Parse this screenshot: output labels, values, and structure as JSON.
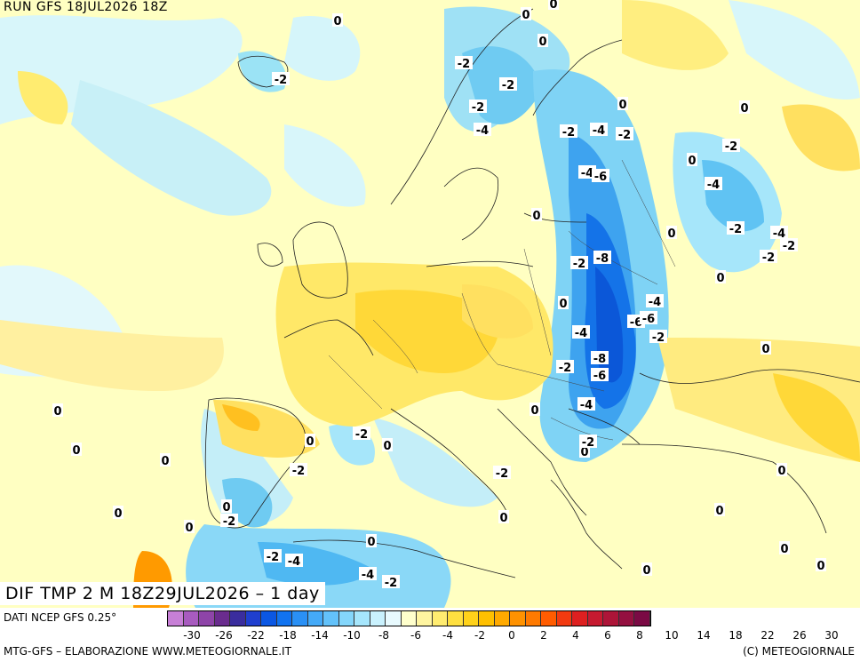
{
  "map": {
    "run_title": "RUN GFS 18JUL2026 18Z",
    "main_title": "DIF TMP 2 M 18Z29JUL2026 – 1 day",
    "data_source": "DATI NCEP GFS 0.25°",
    "credit_left": "MTG-GFS – ELABORAZIONE WWW.METEOGIORNALE.IT",
    "credit_right": "(C) METEOGIORNALE"
  },
  "legend": {
    "colors": [
      "#c77fd6",
      "#a85bbf",
      "#8e44a8",
      "#6a2c8e",
      "#3a2d9e",
      "#1f3fcf",
      "#0b57e3",
      "#1173f0",
      "#2a90f5",
      "#44aaf8",
      "#63c2fa",
      "#84d6fb",
      "#a6e6fc",
      "#c9f1fd",
      "#e8fafe",
      "#ffffcc",
      "#fff5a0",
      "#ffec70",
      "#ffe040",
      "#ffd21a",
      "#ffc000",
      "#ffaa00",
      "#ff9200",
      "#ff7a00",
      "#ff5c00",
      "#f23a10",
      "#de2020",
      "#c61a30",
      "#ad1538",
      "#941040",
      "#7a0a44"
    ],
    "tick_labels": [
      "-30",
      "-26",
      "-22",
      "-18",
      "-14",
      "-10",
      "-8",
      "-6",
      "-4",
      "-2",
      "0",
      "2",
      "4",
      "6",
      "8",
      "10",
      "14",
      "18",
      "22",
      "26",
      "30"
    ]
  },
  "contour_labels": [
    {
      "text": "0"
    },
    {
      "text": "0"
    },
    {
      "text": "0"
    },
    {
      "text": "-2"
    },
    {
      "text": "0"
    },
    {
      "text": "-2"
    },
    {
      "text": "-2"
    },
    {
      "text": "-2"
    },
    {
      "text": "-4"
    },
    {
      "text": "-2"
    },
    {
      "text": "-4"
    },
    {
      "text": "-2"
    },
    {
      "text": "0"
    },
    {
      "text": "0"
    },
    {
      "text": "-2"
    },
    {
      "text": "-4"
    },
    {
      "text": "-6"
    },
    {
      "text": "0"
    },
    {
      "text": "-4"
    },
    {
      "text": "-2"
    },
    {
      "text": "-4"
    },
    {
      "text": "-2"
    },
    {
      "text": "0"
    },
    {
      "text": "-2"
    },
    {
      "text": "-8"
    },
    {
      "text": "-2"
    },
    {
      "text": "0"
    },
    {
      "text": "0"
    },
    {
      "text": "-4"
    },
    {
      "text": "0"
    },
    {
      "text": "-6"
    },
    {
      "text": "-6"
    },
    {
      "text": "-4"
    },
    {
      "text": "-2"
    },
    {
      "text": "-8"
    },
    {
      "text": "-2"
    },
    {
      "text": "-6"
    },
    {
      "text": "0"
    },
    {
      "text": "-4"
    },
    {
      "text": "0"
    },
    {
      "text": "0"
    },
    {
      "text": "0"
    },
    {
      "text": "-2"
    },
    {
      "text": "0"
    },
    {
      "text": "-2"
    },
    {
      "text": "0"
    },
    {
      "text": "-2"
    },
    {
      "text": "0"
    },
    {
      "text": "0"
    },
    {
      "text": "-2"
    },
    {
      "text": "0"
    },
    {
      "text": "-2"
    },
    {
      "text": "-2"
    },
    {
      "text": "-4"
    },
    {
      "text": "0"
    },
    {
      "text": "-4"
    },
    {
      "text": "-2"
    },
    {
      "text": "0"
    },
    {
      "text": "0"
    },
    {
      "text": "0"
    },
    {
      "text": "0"
    },
    {
      "text": "0"
    },
    {
      "text": "0"
    },
    {
      "text": "0"
    },
    {
      "text": "0"
    }
  ]
}
